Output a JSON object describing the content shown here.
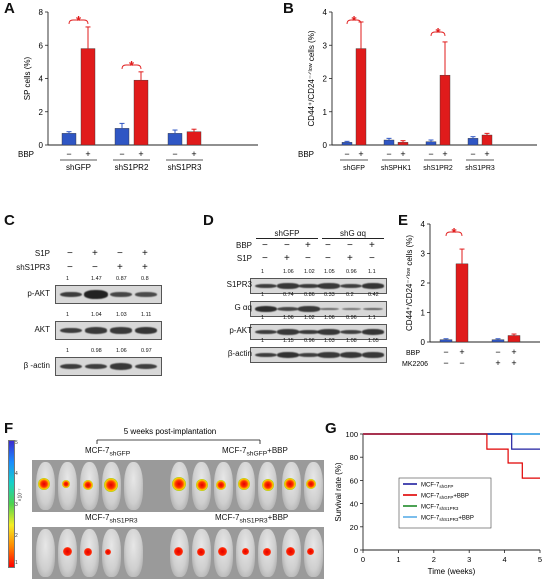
{
  "panels": {
    "A": {
      "letter": "A",
      "chart_data": {
        "type": "bar",
        "ylabel": "SP cells (%)",
        "ylim": [
          0,
          8
        ],
        "yticks": [
          "0",
          "2",
          "4",
          "6",
          "8"
        ],
        "bbp_label": "BBP",
        "bbp_signs": [
          "−",
          "+",
          "−",
          "+",
          "−",
          "+"
        ],
        "groups": [
          "shGFP",
          "shS1PR2",
          "shS1PR3"
        ],
        "values": [
          0.7,
          5.8,
          1.0,
          3.9,
          0.7,
          0.8
        ],
        "errors": [
          0.1,
          1.3,
          0.3,
          0.5,
          0.2,
          0.15
        ],
        "colors": [
          "#2f56c4",
          "#e01b1b",
          "#2f56c4",
          "#e01b1b",
          "#2f56c4",
          "#e01b1b"
        ],
        "significance": "*"
      }
    },
    "B": {
      "letter": "B",
      "chart_data": {
        "type": "bar",
        "ylabel": "CD44⁺/CD24⁻ᐟˡᵒʷ cells (%)",
        "ylim": [
          0,
          4
        ],
        "yticks": [
          "0",
          "1",
          "2",
          "3",
          "4"
        ],
        "bbp_label": "BBP",
        "bbp_signs": [
          "−",
          "+",
          "−",
          "+",
          "−",
          "+",
          "−",
          "+"
        ],
        "groups": [
          "shGFP",
          "shSPHK1",
          "shS1PR2",
          "shS1PR3"
        ],
        "values": [
          0.08,
          2.9,
          0.15,
          0.08,
          0.1,
          2.1,
          0.2,
          0.3
        ],
        "errors": [
          0.03,
          0.8,
          0.05,
          0.05,
          0.05,
          1.0,
          0.05,
          0.05
        ],
        "colors": [
          "#2f56c4",
          "#e01b1b",
          "#2f56c4",
          "#e01b1b",
          "#2f56c4",
          "#e01b1b",
          "#2f56c4",
          "#e01b1b"
        ],
        "significance": "*"
      }
    },
    "C": {
      "letter": "C",
      "treatments": [
        {
          "label": "S1P",
          "signs": [
            "−",
            "+",
            "−",
            "+"
          ]
        },
        {
          "label": "shS1PR3",
          "signs": [
            "−",
            "−",
            "+",
            "+"
          ]
        }
      ],
      "blots": [
        {
          "label": "p-AKT",
          "values": [
            "1",
            "1.47",
            "0.87",
            "0.8"
          ]
        },
        {
          "label": "AKT",
          "values": [
            "1",
            "1.04",
            "1.03",
            "1.11"
          ]
        },
        {
          "label": "β -actin",
          "values": [
            "1",
            "0.98",
            "1.06",
            "0.97"
          ]
        }
      ]
    },
    "D": {
      "letter": "D",
      "groups": [
        "shGFP",
        "shG αq"
      ],
      "treatments": [
        {
          "label": "BBP",
          "signs": [
            "−",
            "−",
            "+",
            "−",
            "−",
            "+"
          ]
        },
        {
          "label": "S1P",
          "signs": [
            "−",
            "+",
            "−",
            "−",
            "+",
            "−"
          ]
        }
      ],
      "blots": [
        {
          "label": "S1PR3",
          "values": [
            "1",
            "1.06",
            "1.02",
            "1.05",
            "0.96",
            "1.1"
          ]
        },
        {
          "label": "G αq",
          "values": [
            "1",
            "0.74",
            "0.86",
            "0.33",
            "0.2",
            "0.42"
          ]
        },
        {
          "label": "p-AKT",
          "values": [
            "1",
            "1.06",
            "1.02",
            "1.06",
            "0.96",
            "1.1"
          ]
        },
        {
          "label": "β-actin",
          "values": [
            "1",
            "1.15",
            "0.96",
            "1.03",
            "1.08",
            "1.05"
          ]
        }
      ]
    },
    "E": {
      "letter": "E",
      "chart_data": {
        "type": "bar",
        "ylabel": "CD44⁺/CD24⁻ᐟˡᵒʷ cells (%)",
        "ylim": [
          0,
          4
        ],
        "yticks": [
          "0",
          "1",
          "2",
          "3",
          "4"
        ],
        "rows": [
          {
            "label": "BBP",
            "signs": [
              "−",
              "+",
              "−",
              "+"
            ]
          },
          {
            "label": "MK2206",
            "signs": [
              "−",
              "−",
              "+",
              "+"
            ]
          }
        ],
        "values": [
          0.08,
          2.65,
          0.08,
          0.22
        ],
        "errors": [
          0.03,
          0.5,
          0.03,
          0.05
        ],
        "colors": [
          "#2f56c4",
          "#e01b1b",
          "#2f56c4",
          "#e01b1b"
        ],
        "significance": "*"
      }
    },
    "F": {
      "letter": "F",
      "title": "5 weeks post-implantation",
      "colorbar_ticks": [
        "5",
        "4",
        "3",
        "2",
        "1"
      ],
      "colorbar_unit": "×10⁻⁷",
      "groups": [
        {
          "base": "MCF-7",
          "sub": "shGFP",
          "suffix": ""
        },
        {
          "base": "MCF-7",
          "sub": "shGFP",
          "suffix": "+BBP"
        },
        {
          "base": "MCF-7",
          "sub": "shS1PR3",
          "suffix": ""
        },
        {
          "base": "MCF-7",
          "sub": "shS1PR3",
          "suffix": "+BBP"
        }
      ]
    },
    "G": {
      "letter": "G",
      "chart_data": {
        "type": "line",
        "xlabel": "Time (weeks)",
        "ylabel": "Survival rate (%)",
        "xlim": [
          0,
          5
        ],
        "ylim": [
          0,
          100
        ],
        "xticks": [
          "0",
          "1",
          "2",
          "3",
          "4",
          "5"
        ],
        "yticks": [
          "0",
          "20",
          "40",
          "60",
          "80",
          "100"
        ],
        "series": [
          {
            "name": "MCF-7shGFP",
            "base": "MCF-7",
            "sub": "shGFP",
            "suffix": "",
            "color": "#1f1fa0",
            "steps": [
              [
                0,
                100
              ],
              [
                4.2,
                100
              ],
              [
                4.2,
                87
              ],
              [
                5,
                87
              ]
            ]
          },
          {
            "name": "MCF-7shGFP+BBP",
            "base": "MCF-7",
            "sub": "shGFP",
            "suffix": "+BBP",
            "color": "#e00000",
            "steps": [
              [
                0,
                100
              ],
              [
                3.5,
                100
              ],
              [
                3.5,
                87
              ],
              [
                4.1,
                87
              ],
              [
                4.1,
                75
              ],
              [
                4.5,
                75
              ],
              [
                4.5,
                62
              ],
              [
                5,
                62
              ]
            ]
          },
          {
            "name": "MCF-7shS1PR3",
            "base": "MCF-7",
            "sub": "shS1PR3",
            "suffix": "",
            "color": "#1f8a2a",
            "steps": [
              [
                0,
                100
              ],
              [
                5,
                100
              ]
            ]
          },
          {
            "name": "MCF-7shS1PR3+BBP",
            "base": "MCF-7",
            "sub": "shS1PR3",
            "suffix": "+BBP",
            "color": "#5aaee8",
            "steps": [
              [
                0,
                100
              ],
              [
                5,
                100
              ]
            ]
          }
        ]
      }
    }
  }
}
